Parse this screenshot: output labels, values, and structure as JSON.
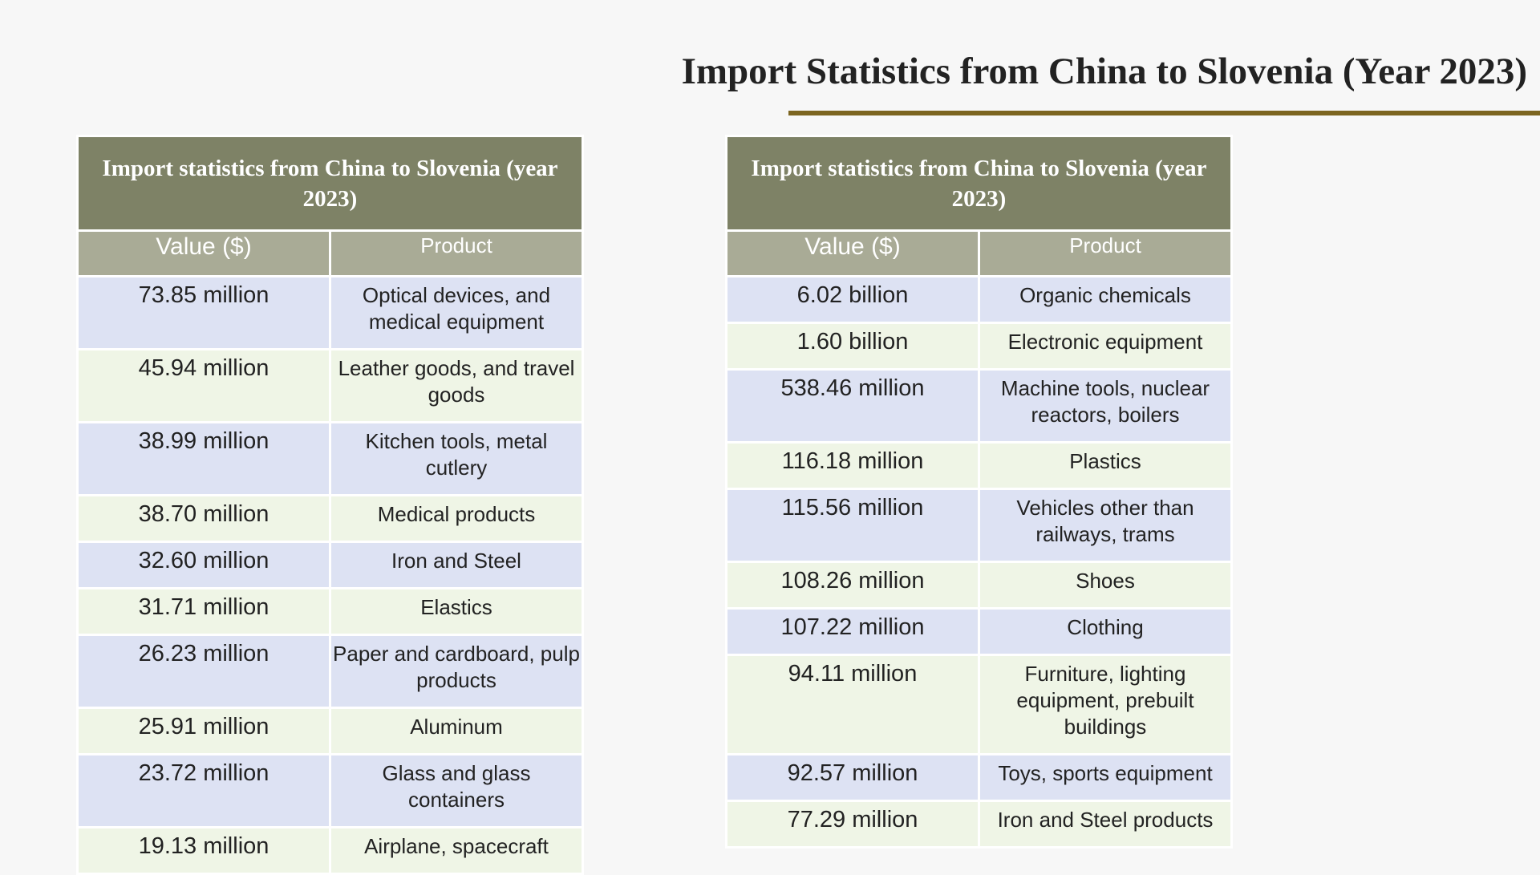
{
  "title": "Import Statistics from China to Slovenia (Year 2023)",
  "tables": [
    {
      "caption": "Import statistics from China to Slovenia (year 2023)",
      "headers": [
        "Value ($)",
        "Product"
      ],
      "rows": [
        [
          "73.85 million",
          "Optical devices, and medical equipment"
        ],
        [
          "45.94 million",
          "Leather goods, and travel goods"
        ],
        [
          "38.99 million",
          "Kitchen tools, metal cutlery"
        ],
        [
          "38.70 million",
          "Medical products"
        ],
        [
          "32.60 million",
          "Iron and Steel"
        ],
        [
          "31.71 million",
          "Elastics"
        ],
        [
          "26.23 million",
          "Paper and cardboard, pulp products"
        ],
        [
          "25.91 million",
          "Aluminum"
        ],
        [
          "23.72 million",
          "Glass and glass containers"
        ],
        [
          "19.13 million",
          "Airplane, spacecraft"
        ]
      ]
    },
    {
      "caption": "Import statistics from China to Slovenia (year 2023)",
      "headers": [
        "Value ($)",
        "Product"
      ],
      "rows": [
        [
          "6.02 billion",
          "Organic chemicals"
        ],
        [
          "1.60 billion",
          "Electronic equipment"
        ],
        [
          "538.46 million",
          "Machine tools, nuclear reactors, boilers"
        ],
        [
          "116.18 million",
          "Plastics"
        ],
        [
          "115.56 million",
          "Vehicles other than railways, trams"
        ],
        [
          "108.26 million",
          "Shoes"
        ],
        [
          "107.22 million",
          "Clothing"
        ],
        [
          "94.11 million",
          "Furniture, lighting equipment, prebuilt buildings"
        ],
        [
          "92.57 million",
          "Toys, sports equipment"
        ],
        [
          "77.29 million",
          "Iron and Steel products"
        ]
      ]
    }
  ]
}
